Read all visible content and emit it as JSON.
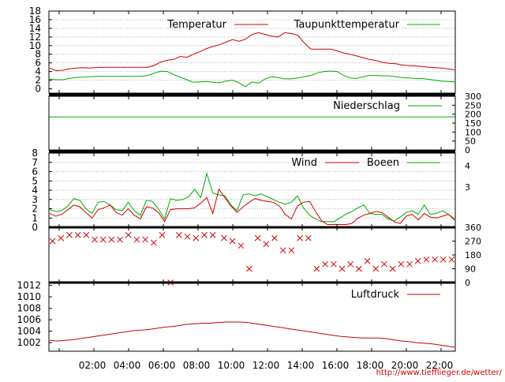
{
  "colors": {
    "primary": "#cc0000",
    "secondary": "#00aa00",
    "axis": "#000000",
    "grid": "#b0b0b0"
  },
  "footer_url": "http://www.tiefflieger.de/wetter/",
  "chart_data": [
    {
      "type": "line",
      "name": "temperature",
      "legend": [
        "Temperatur",
        "Taupunkttemperatur"
      ],
      "ylim": [
        -1,
        18
      ],
      "yticks": [
        "18",
        "16",
        "14",
        "12",
        "10",
        "8",
        "6",
        "4",
        "2",
        "0"
      ],
      "grid": true,
      "series": [
        {
          "name": "Temperatur",
          "values": [
            4.8,
            4.2,
            4.3,
            4.6,
            4.8,
            4.9,
            4.8,
            4.9,
            5.0,
            5.0,
            5.0,
            5.0,
            5.0,
            5.0,
            5.0,
            5.0,
            5.4,
            6.2,
            6.6,
            6.8,
            7.5,
            7.3,
            8.0,
            8.6,
            9.3,
            9.8,
            10.2,
            10.8,
            11.4,
            11.0,
            11.5,
            12.6,
            13.0,
            12.6,
            12.2,
            12.0,
            13.0,
            12.8,
            12.4,
            10.6,
            9.2,
            9.2,
            9.2,
            9.2,
            8.8,
            8.3,
            8.0,
            7.6,
            7.2,
            6.8,
            6.5,
            6.1,
            5.9,
            5.8,
            5.5,
            5.4,
            5.3,
            5.2,
            5.0,
            4.9,
            4.8,
            4.6,
            4.4
          ]
        },
        {
          "name": "Taupunkttemperatur",
          "values": [
            2.2,
            2.1,
            2.1,
            2.4,
            2.6,
            2.7,
            2.8,
            2.9,
            2.9,
            2.9,
            2.9,
            2.9,
            2.9,
            2.9,
            2.9,
            3.1,
            3.6,
            4.1,
            4.0,
            3.3,
            2.7,
            2.1,
            1.5,
            1.6,
            1.7,
            1.5,
            1.4,
            1.8,
            2.0,
            1.4,
            0.5,
            1.6,
            1.3,
            2.3,
            2.8,
            2.6,
            2.3,
            2.3,
            2.5,
            2.8,
            3.1,
            3.7,
            4.0,
            4.1,
            4.0,
            3.1,
            2.5,
            2.4,
            2.8,
            3.1,
            3.1,
            3.0,
            3.0,
            2.8,
            2.6,
            2.5,
            2.4,
            2.4,
            2.2,
            2.0,
            1.8,
            1.7,
            1.6
          ]
        }
      ]
    },
    {
      "type": "line",
      "name": "precipitation",
      "legend": [
        "Niederschlag"
      ],
      "ylim": [
        0,
        300
      ],
      "yticks": [
        "300",
        "250",
        "200",
        "150",
        "100",
        "50",
        "0"
      ],
      "series": [
        {
          "name": "Niederschlag",
          "values": [
            185,
            185
          ]
        }
      ]
    },
    {
      "type": "line",
      "name": "wind",
      "legend": [
        "Wind",
        "Boeen"
      ],
      "ylim": [
        0,
        8
      ],
      "yticks": [
        "8",
        "7",
        "6",
        "5",
        "4",
        "3",
        "2",
        "1",
        "0"
      ],
      "right_ticks": [
        "4",
        "3"
      ],
      "grid": true,
      "series": [
        {
          "name": "Wind",
          "values": [
            1.5,
            1.2,
            1.4,
            1.9,
            2.4,
            2.2,
            1.6,
            1.0,
            1.9,
            2.1,
            2.4,
            1.6,
            1.3,
            2.0,
            1.3,
            0.9,
            2.2,
            2.1,
            1.6,
            0.6,
            1.9,
            2.0,
            2.0,
            2.0,
            2.1,
            2.6,
            3.2,
            1.5,
            4.1,
            3.2,
            2.3,
            1.6,
            2.2,
            2.7,
            3.1,
            2.9,
            2.8,
            2.7,
            2.3,
            1.4,
            0.9,
            2.3,
            2.7,
            2.8,
            1.7,
            0.7,
            0.3,
            0.3,
            0.3,
            0.3,
            0.4,
            1.0,
            1.3,
            1.5,
            1.7,
            1.6,
            1.1,
            0.6,
            0.4,
            1.2,
            1.4,
            0.8,
            1.5,
            1.1,
            1.0,
            1.2,
            1.4,
            0.8
          ]
        },
        {
          "name": "Boeen",
          "values": [
            1.9,
            1.7,
            1.8,
            2.3,
            3.1,
            2.9,
            2.0,
            1.5,
            2.7,
            2.8,
            2.4,
            1.9,
            1.8,
            2.7,
            1.8,
            1.3,
            2.9,
            2.8,
            2.0,
            0.9,
            3.1,
            2.9,
            3.0,
            3.3,
            4.1,
            3.2,
            5.8,
            3.7,
            3.5,
            3.4,
            2.4,
            1.8,
            3.5,
            3.6,
            3.4,
            3.6,
            3.3,
            3.0,
            2.7,
            2.5,
            2.7,
            3.4,
            2.1,
            1.3,
            0.9,
            0.6,
            0.6,
            0.6,
            1.0,
            1.4,
            1.7,
            2.1,
            2.4,
            1.5,
            1.4,
            1.4,
            0.9,
            0.7,
            1.1,
            1.6,
            1.8,
            1.4,
            2.4,
            1.4,
            1.5,
            1.8,
            1.4,
            0.9
          ]
        }
      ]
    },
    {
      "type": "scatter",
      "name": "wind-direction",
      "ylim": [
        0,
        360
      ],
      "yticks": [
        "360",
        "270",
        "180",
        "90",
        "0"
      ],
      "x": [
        1,
        4,
        7,
        10,
        13,
        16,
        19,
        22,
        25,
        28,
        31,
        34,
        37,
        40,
        43,
        46,
        49,
        52,
        55,
        58,
        62,
        65,
        68,
        71,
        74,
        77,
        80,
        83,
        86,
        89,
        92,
        95,
        98,
        101,
        104,
        107,
        110,
        113,
        116,
        119,
        122,
        125,
        128,
        131,
        134,
        137,
        140,
        143
      ],
      "values": [
        270,
        290,
        310,
        310,
        310,
        280,
        280,
        280,
        280,
        310,
        280,
        280,
        260,
        310,
        0,
        310,
        300,
        290,
        310,
        310,
        290,
        270,
        240,
        90,
        290,
        250,
        290,
        210,
        210,
        290,
        290,
        90,
        120,
        120,
        90,
        120,
        90,
        140,
        90,
        120,
        90,
        120,
        120,
        140,
        150,
        150,
        150,
        150
      ]
    },
    {
      "type": "line",
      "name": "pressure",
      "legend": [
        "Luftdruck"
      ],
      "ylim": [
        1000.5,
        1012.5
      ],
      "yticks": [
        "1012",
        "1010",
        "1008",
        "1006",
        "1004",
        "1002"
      ],
      "xticks": [
        "02:00",
        "04:00",
        "06:00",
        "08:00",
        "10:00",
        "12:00",
        "14:00",
        "16:00",
        "18:00",
        "20:00",
        "22:00"
      ],
      "series": [
        {
          "name": "Luftdruck",
          "values": [
            1002.4,
            1002.3,
            1002.4,
            1002.5,
            1002.7,
            1002.9,
            1003.1,
            1003.3,
            1003.5,
            1003.7,
            1003.9,
            1004.1,
            1004.2,
            1004.3,
            1004.5,
            1004.7,
            1004.8,
            1005.0,
            1005.2,
            1005.3,
            1005.4,
            1005.4,
            1005.5,
            1005.6,
            1005.6,
            1005.6,
            1005.5,
            1005.3,
            1005.1,
            1004.9,
            1004.7,
            1004.5,
            1004.3,
            1004.1,
            1003.9,
            1003.7,
            1003.5,
            1003.3,
            1003.1,
            1003.0,
            1002.9,
            1002.8,
            1002.8,
            1002.8,
            1002.7,
            1002.5,
            1002.3,
            1002.2,
            1002.0,
            1001.9,
            1001.8,
            1001.6,
            1001.4,
            1001.2
          ]
        }
      ]
    }
  ]
}
